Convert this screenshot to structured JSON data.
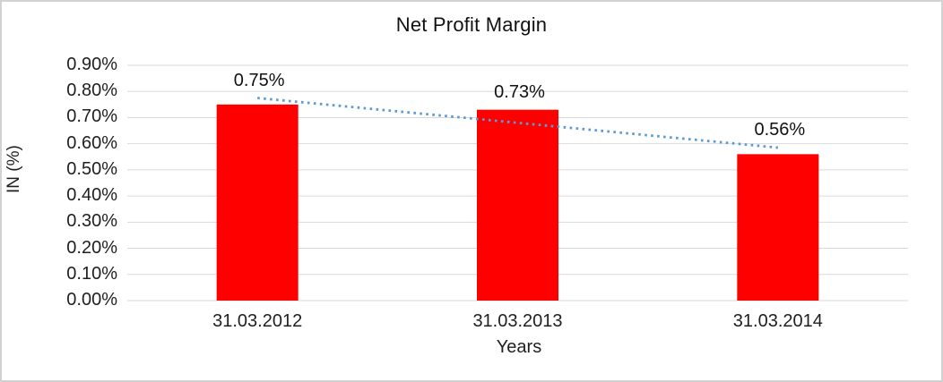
{
  "chart_data": {
    "type": "bar",
    "title": "Net Profit Margin",
    "xlabel": "Years",
    "ylabel": "IN (%)",
    "categories": [
      "31.03.2012",
      "31.03.2013",
      "31.03.2014"
    ],
    "values": [
      0.75,
      0.73,
      0.56
    ],
    "data_labels": [
      "0.75%",
      "0.73%",
      "0.56%"
    ],
    "ylim": [
      0.0,
      0.9
    ],
    "ytick_step": 0.1,
    "ytick_labels": [
      "0.00%",
      "0.10%",
      "0.20%",
      "0.30%",
      "0.40%",
      "0.50%",
      "0.60%",
      "0.70%",
      "0.80%",
      "0.90%"
    ],
    "grid": true,
    "legend": "none",
    "bar_color": "#ff0000",
    "trendline": {
      "type": "linear",
      "style": "dotted",
      "color": "#5b9bd5"
    },
    "gridline_color": "#d9d9d9",
    "background_color": "#ffffff",
    "border_color": "#d2d2d2"
  }
}
